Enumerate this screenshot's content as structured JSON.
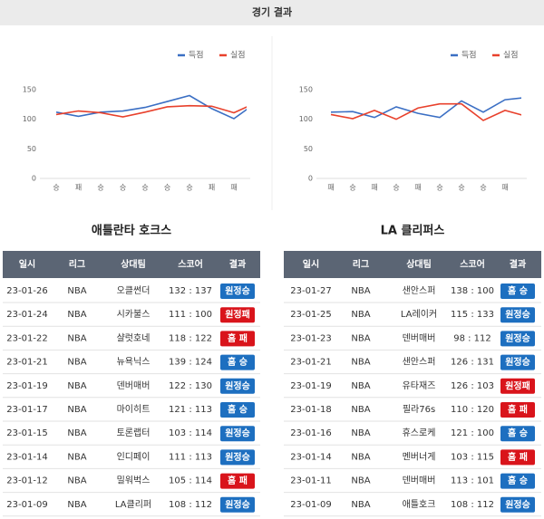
{
  "header": {
    "title": "경기 결과"
  },
  "chart_data": [
    {
      "type": "line",
      "categories": [
        "승",
        "패",
        "승",
        "승",
        "승",
        "승",
        "승",
        "패",
        "패",
        null
      ],
      "series": [
        {
          "name": "득점",
          "color": "#3b6fc4",
          "values": [
            112,
            105,
            112,
            114,
            120,
            130,
            140,
            118,
            101,
            128
          ]
        },
        {
          "name": "실점",
          "color": "#e8412c",
          "values": [
            108,
            114,
            111,
            104,
            112,
            121,
            123,
            122,
            111,
            128
          ]
        }
      ],
      "ylim": [
        0,
        150
      ],
      "yticks": [
        0,
        50,
        100,
        150
      ],
      "grid": false,
      "legend": "top-right"
    },
    {
      "type": "line",
      "categories": [
        "패",
        "승",
        "패",
        "승",
        "패",
        "승",
        "승",
        "승",
        "패",
        null
      ],
      "series": [
        {
          "name": "득점",
          "color": "#3b6fc4",
          "values": [
            112,
            113,
            103,
            121,
            110,
            103,
            131,
            112,
            133,
            137
          ]
        },
        {
          "name": "실점",
          "color": "#e8412c",
          "values": [
            108,
            101,
            115,
            100,
            119,
            126,
            126,
            98,
            115,
            105
          ]
        }
      ],
      "ylim": [
        0,
        150
      ],
      "yticks": [
        0,
        50,
        100,
        150
      ],
      "grid": false,
      "legend": "top-right"
    }
  ],
  "teams": [
    {
      "name": "애틀란타 호크스",
      "table": {
        "columns": [
          "일시",
          "리그",
          "상대팀",
          "스코어",
          "결과"
        ],
        "rows": [
          {
            "date": "23-01-26",
            "league": "NBA",
            "opponent": "오클썬더",
            "score": "132 : 137",
            "result": "원정승",
            "color": "#1d6fc0"
          },
          {
            "date": "23-01-24",
            "league": "NBA",
            "opponent": "시카불스",
            "score": "111 : 100",
            "result": "원정패",
            "color": "#d9141b"
          },
          {
            "date": "23-01-22",
            "league": "NBA",
            "opponent": "샬럿호네",
            "score": "118 : 122",
            "result": "홈 패",
            "color": "#d9141b"
          },
          {
            "date": "23-01-21",
            "league": "NBA",
            "opponent": "뉴욕닉스",
            "score": "139 : 124",
            "result": "홈 승",
            "color": "#1d6fc0"
          },
          {
            "date": "23-01-19",
            "league": "NBA",
            "opponent": "덴버매버",
            "score": "122 : 130",
            "result": "원정승",
            "color": "#1d6fc0"
          },
          {
            "date": "23-01-17",
            "league": "NBA",
            "opponent": "마이히트",
            "score": "121 : 113",
            "result": "홈 승",
            "color": "#1d6fc0"
          },
          {
            "date": "23-01-15",
            "league": "NBA",
            "opponent": "토론랩터",
            "score": "103 : 114",
            "result": "원정승",
            "color": "#1d6fc0"
          },
          {
            "date": "23-01-14",
            "league": "NBA",
            "opponent": "인디페이",
            "score": "111 : 113",
            "result": "원정승",
            "color": "#1d6fc0"
          },
          {
            "date": "23-01-12",
            "league": "NBA",
            "opponent": "밀워벅스",
            "score": "105 : 114",
            "result": "홈 패",
            "color": "#d9141b"
          },
          {
            "date": "23-01-09",
            "league": "NBA",
            "opponent": "LA클리퍼",
            "score": "108 : 112",
            "result": "원정승",
            "color": "#1d6fc0"
          }
        ]
      }
    },
    {
      "name": "LA 클리퍼스",
      "table": {
        "columns": [
          "일시",
          "리그",
          "상대팀",
          "스코어",
          "결과"
        ],
        "rows": [
          {
            "date": "23-01-27",
            "league": "NBA",
            "opponent": "샌안스퍼",
            "score": "138 : 100",
            "result": "홈 승",
            "color": "#1d6fc0"
          },
          {
            "date": "23-01-25",
            "league": "NBA",
            "opponent": "LA레이커",
            "score": "115 : 133",
            "result": "원정승",
            "color": "#1d6fc0"
          },
          {
            "date": "23-01-23",
            "league": "NBA",
            "opponent": "덴버매버",
            "score": "98 : 112",
            "result": "원정승",
            "color": "#1d6fc0"
          },
          {
            "date": "23-01-21",
            "league": "NBA",
            "opponent": "샌안스퍼",
            "score": "126 : 131",
            "result": "원정승",
            "color": "#1d6fc0"
          },
          {
            "date": "23-01-19",
            "league": "NBA",
            "opponent": "유타재즈",
            "score": "126 : 103",
            "result": "원정패",
            "color": "#d9141b"
          },
          {
            "date": "23-01-18",
            "league": "NBA",
            "opponent": "필라76s",
            "score": "110 : 120",
            "result": "홈 패",
            "color": "#d9141b"
          },
          {
            "date": "23-01-16",
            "league": "NBA",
            "opponent": "휴스로케",
            "score": "121 : 100",
            "result": "홈 승",
            "color": "#1d6fc0"
          },
          {
            "date": "23-01-14",
            "league": "NBA",
            "opponent": "멘버너게",
            "score": "103 : 115",
            "result": "홈 패",
            "color": "#d9141b"
          },
          {
            "date": "23-01-11",
            "league": "NBA",
            "opponent": "덴버매버",
            "score": "113 : 101",
            "result": "홈 승",
            "color": "#1d6fc0"
          },
          {
            "date": "23-01-09",
            "league": "NBA",
            "opponent": "애틀호크",
            "score": "108 : 112",
            "result": "원정승",
            "color": "#1d6fc0"
          }
        ]
      }
    }
  ]
}
